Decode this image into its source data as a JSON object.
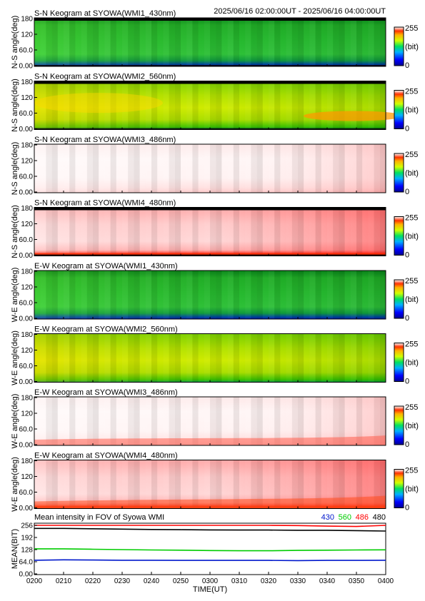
{
  "header": {
    "time_range": "2025/06/16 02:00:00UT - 2025/06/16 04:00:00UT"
  },
  "keograms": [
    {
      "title": "S-N Keogram at SYOWA(WMI1_430nm)",
      "ylabel": "N-S angle(deg)",
      "yticks": [
        "0.00",
        "60.0",
        "120",
        "180"
      ],
      "colorbar": {
        "max_label": "255",
        "unit_label": "(bit)",
        "min_label": "0"
      },
      "scheme": "green",
      "top_dark_band": true
    },
    {
      "title": "S-N Keogram at SYOWA(WMI2_560nm)",
      "ylabel": "N-S angle(deg)",
      "yticks": [
        "0.00",
        "60.0",
        "120",
        "180"
      ],
      "colorbar": {
        "max_label": "255",
        "unit_label": "(bit)",
        "min_label": "0"
      },
      "scheme": "yellow",
      "top_dark_band": true
    },
    {
      "title": "S-N Keogram at SYOWA(WMI3_486nm)",
      "ylabel": "N-S angle(deg)",
      "yticks": [
        "0.00",
        "60.0",
        "120",
        "180"
      ],
      "colorbar": {
        "max_label": "255",
        "unit_label": "(bit)",
        "min_label": "0"
      },
      "scheme": "white-red",
      "top_dark_band": false
    },
    {
      "title": "S-N Keogram at SYOWA(WMI4_480nm)",
      "ylabel": "N-S angle(deg)",
      "yticks": [
        "0.00",
        "60.0",
        "120",
        "180"
      ],
      "colorbar": {
        "max_label": "255",
        "unit_label": "(bit)",
        "min_label": "0"
      },
      "scheme": "red",
      "top_dark_band": true
    },
    {
      "title": "E-W Keogram at SYOWA(WMI1_430nm)",
      "ylabel": "W-E angle(deg)",
      "yticks": [
        "0.00",
        "60.0",
        "120",
        "180"
      ],
      "colorbar": {
        "max_label": "255",
        "unit_label": "(bit)",
        "min_label": "0"
      },
      "scheme": "green",
      "top_dark_band": false
    },
    {
      "title": "E-W Keogram at SYOWA(WMI2_560nm)",
      "ylabel": "W-E angle(deg)",
      "yticks": [
        "0.00",
        "60.0",
        "120",
        "180"
      ],
      "colorbar": {
        "max_label": "255",
        "unit_label": "(bit)",
        "min_label": "0"
      },
      "scheme": "yellow",
      "top_dark_band": false
    },
    {
      "title": "E-W Keogram at SYOWA(WMI3_486nm)",
      "ylabel": "W-E angle(deg)",
      "yticks": [
        "0.00",
        "60.0",
        "120",
        "180"
      ],
      "colorbar": {
        "max_label": "255",
        "unit_label": "(bit)",
        "min_label": "0"
      },
      "scheme": "white-red",
      "top_dark_band": false
    },
    {
      "title": "E-W Keogram at SYOWA(WMI4_480nm)",
      "ylabel": "W-E angle(deg)",
      "yticks": [
        "0.00",
        "60.0",
        "120",
        "180"
      ],
      "colorbar": {
        "max_label": "255",
        "unit_label": "(bit)",
        "min_label": "0"
      },
      "scheme": "red",
      "top_dark_band": false
    }
  ],
  "chart_data": {
    "type": "line",
    "title": "Mean intensity in FOV of Syowa WMI",
    "xlabel": "TIME(UT)",
    "ylabel": "MEAN(BIT)",
    "x_tick_labels": [
      "0200",
      "0210",
      "0220",
      "0230",
      "0240",
      "0250",
      "0300",
      "0310",
      "0320",
      "0330",
      "0340",
      "0350",
      "0400"
    ],
    "y_tick_labels": [
      "0.00",
      "64.0",
      "128",
      "192",
      "256"
    ],
    "ylim": [
      0,
      256
    ],
    "x": [
      0,
      10,
      20,
      30,
      40,
      50,
      60,
      70,
      80,
      90,
      100,
      110,
      120
    ],
    "series": [
      {
        "name": "430",
        "color": "#0018cc",
        "values": [
          72,
          74,
          73,
          72,
          72,
          71,
          71,
          71,
          71,
          70,
          71,
          71,
          72
        ]
      },
      {
        "name": "560",
        "color": "#00cc00",
        "values": [
          132,
          132,
          130,
          128,
          126,
          125,
          123,
          122,
          122,
          124,
          125,
          126,
          127
        ]
      },
      {
        "name": "486",
        "color": "#ff0000",
        "values": [
          256,
          256,
          256,
          256,
          256,
          256,
          256,
          256,
          256,
          255,
          252,
          250,
          256
        ]
      },
      {
        "name": "480",
        "color": "#000000",
        "values": [
          240,
          240,
          238,
          236,
          234,
          233,
          232,
          231,
          231,
          230,
          230,
          228,
          226
        ]
      }
    ]
  }
}
